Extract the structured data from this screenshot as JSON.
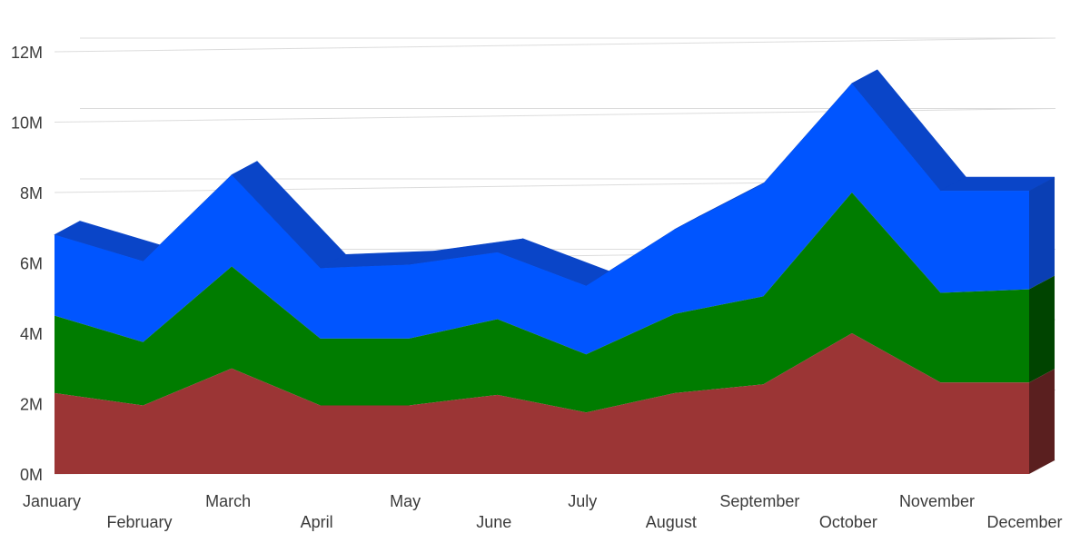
{
  "chart_data": {
    "type": "area",
    "stacked": true,
    "three_d": true,
    "grid": true,
    "legend": "none",
    "title": "",
    "xlabel": "",
    "ylabel": "",
    "categories": [
      "January",
      "February",
      "March",
      "April",
      "May",
      "June",
      "July",
      "August",
      "September",
      "October",
      "November",
      "December"
    ],
    "ylim": [
      0,
      12000000
    ],
    "y_ticks": [
      0,
      2000000,
      4000000,
      6000000,
      8000000,
      10000000,
      12000000
    ],
    "y_tick_labels": [
      "0M",
      "2M",
      "4M",
      "6M",
      "8M",
      "10M",
      "12M"
    ],
    "series": [
      {
        "values": [
          2300000,
          1950000,
          3000000,
          1950000,
          1950000,
          2250000,
          1750000,
          2300000,
          2550000,
          4000000,
          2600000,
          2600000
        ],
        "color": "#9b3535",
        "side_color": "#5a1f1f"
      },
      {
        "values": [
          2200000,
          1800000,
          2900000,
          1900000,
          1900000,
          2150000,
          1650000,
          2250000,
          2500000,
          4000000,
          2550000,
          2650000
        ],
        "color": "#007c00",
        "side_color": "#004400"
      },
      {
        "values": [
          2300000,
          2300000,
          2600000,
          2000000,
          2100000,
          1900000,
          1950000,
          2400000,
          3200000,
          3100000,
          2900000,
          2800000
        ],
        "color": "#0055ff",
        "side_color": "#0a3fb4",
        "top_color": "#0a45c8"
      }
    ]
  }
}
